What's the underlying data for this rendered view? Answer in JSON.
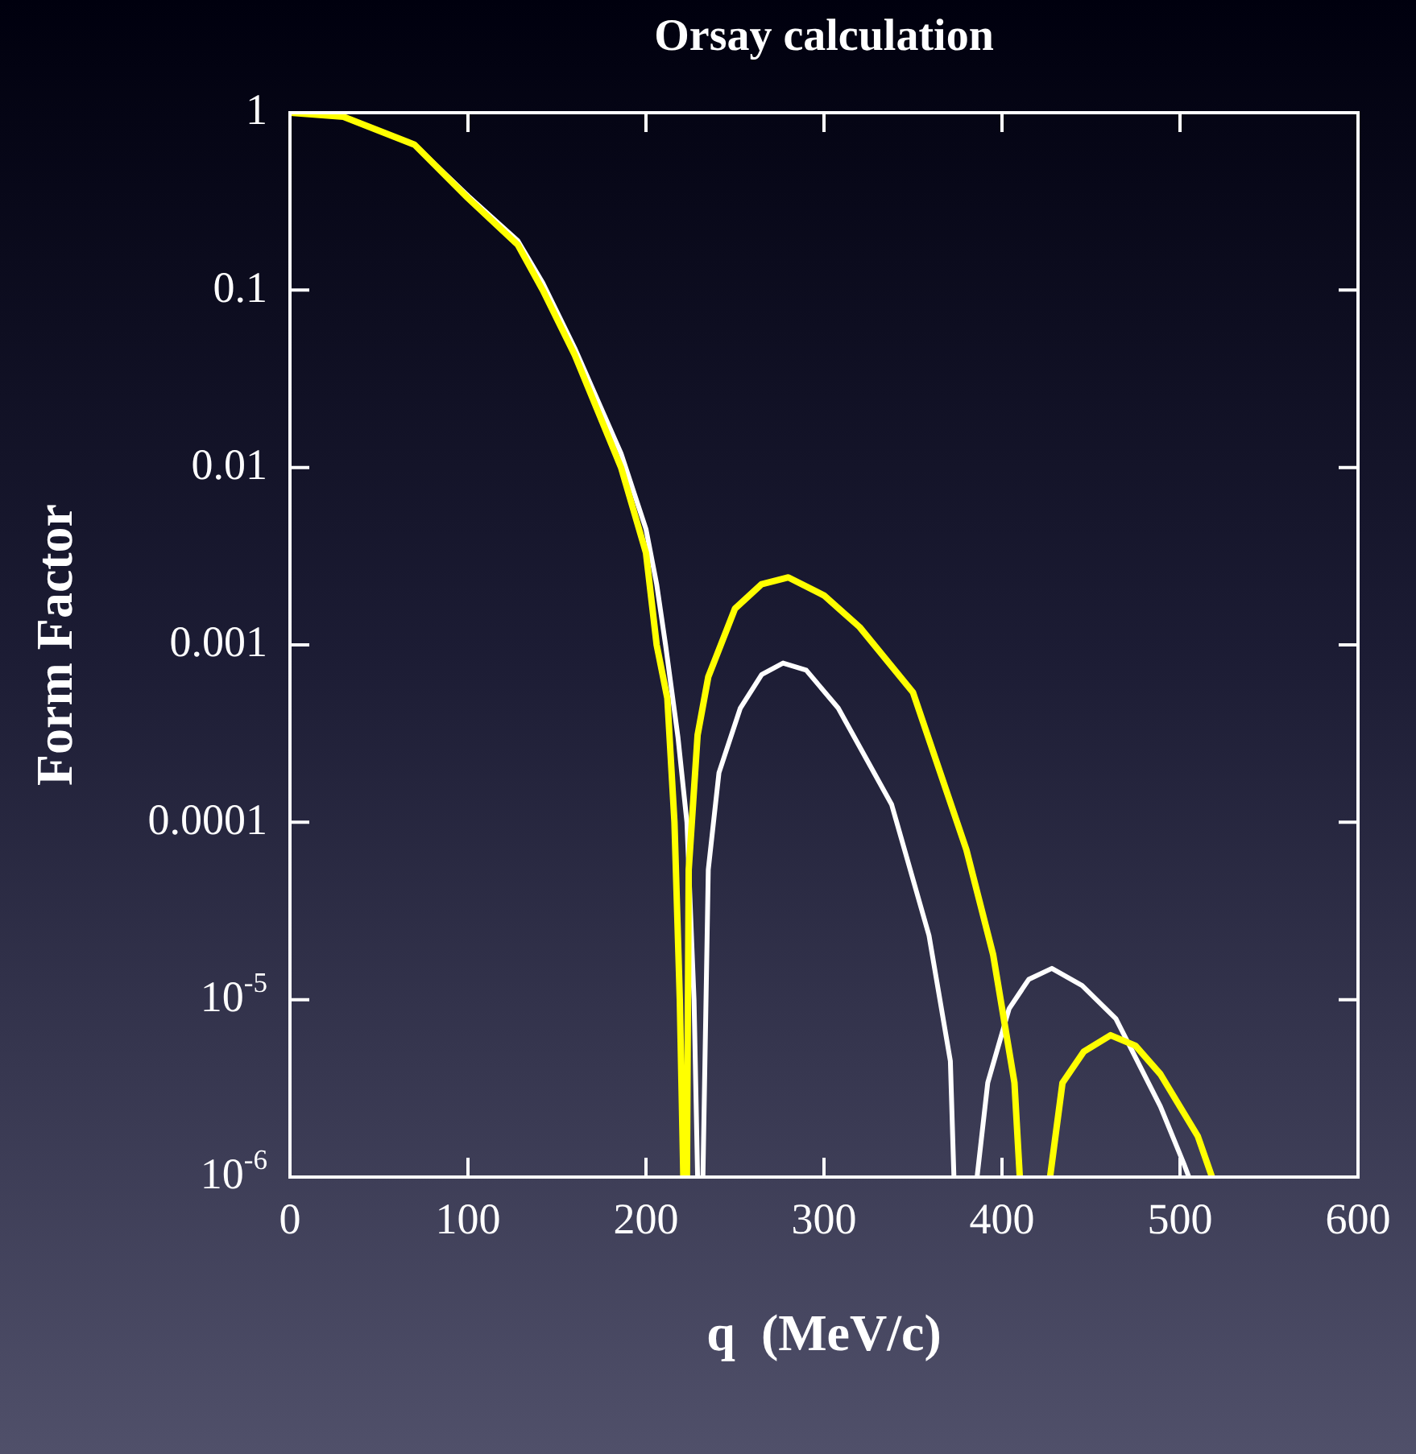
{
  "chart_data": {
    "type": "line",
    "title": "Orsay calculation",
    "xlabel": "q  (MeV/c)",
    "ylabel": "Form Factor",
    "log": "y",
    "grid": false,
    "legend": false,
    "marker": "none",
    "line_style": "solid",
    "xlim": [
      0,
      600
    ],
    "xticks": [
      0,
      100,
      200,
      300,
      400,
      500,
      600
    ],
    "ylim": [
      1e-06,
      1
    ],
    "yticks": [
      {
        "value": 1,
        "label": "1"
      },
      {
        "value": 0.1,
        "label": "0.1"
      },
      {
        "value": 0.01,
        "label": "0.01"
      },
      {
        "value": 0.001,
        "label": "0.001"
      },
      {
        "value": 0.0001,
        "label": "0.0001"
      },
      {
        "value": 1e-05,
        "label": "10$^{-5}$"
      },
      {
        "value": 1e-06,
        "label": "10$^{-6}$"
      }
    ],
    "series": [
      {
        "color": "#ffff00",
        "x": [
          0,
          30,
          70,
          100,
          128,
          142,
          160,
          186,
          200,
          206,
          212,
          216,
          219,
          221,
          222,
          223,
          224,
          229,
          235,
          250,
          265,
          280,
          300,
          320,
          350,
          380,
          395,
          407,
          410,
          418,
          427,
          434,
          446,
          461,
          475,
          489,
          510,
          518
        ],
        "values": [
          1,
          0.95,
          0.66,
          0.33,
          0.18,
          0.1,
          0.043,
          0.01,
          0.0033,
          0.001,
          0.0005,
          0.0001,
          1e-05,
          1e-06,
          null,
          1e-06,
          5.4e-05,
          0.00031,
          0.00066,
          0.0016,
          0.0022,
          0.0024,
          0.0019,
          0.00126,
          0.00054,
          7e-05,
          1.8e-05,
          3.4e-06,
          1e-06,
          null,
          1e-06,
          3.4e-06,
          5.1e-06,
          6.3e-06,
          5.5e-06,
          3.8e-06,
          1.7e-06,
          1e-06
        ]
      },
      {
        "color": "#ffffff",
        "x": [
          0,
          30,
          70,
          100,
          128,
          142,
          160,
          186,
          200,
          206,
          211,
          218,
          223,
          227,
          229,
          230,
          232,
          235,
          241,
          253,
          265,
          277,
          290,
          308,
          338,
          359,
          371,
          373,
          380,
          386,
          392,
          404,
          415,
          428,
          445,
          464,
          489,
          502,
          505
        ],
        "values": [
          1,
          0.95,
          0.66,
          0.34,
          0.19,
          0.11,
          0.047,
          0.012,
          0.0045,
          0.0022,
          0.001,
          0.0003,
          0.0001,
          1e-05,
          1e-06,
          null,
          1e-06,
          5.4e-05,
          0.00019,
          0.00044,
          0.00068,
          0.00079,
          0.00072,
          0.00044,
          0.000126,
          2.3e-05,
          4.5e-06,
          1e-06,
          null,
          1e-06,
          3.4e-06,
          8.9e-06,
          1.3e-05,
          1.5e-05,
          1.2e-05,
          7.8e-06,
          2.5e-06,
          1.2e-06,
          1e-06
        ]
      }
    ]
  }
}
